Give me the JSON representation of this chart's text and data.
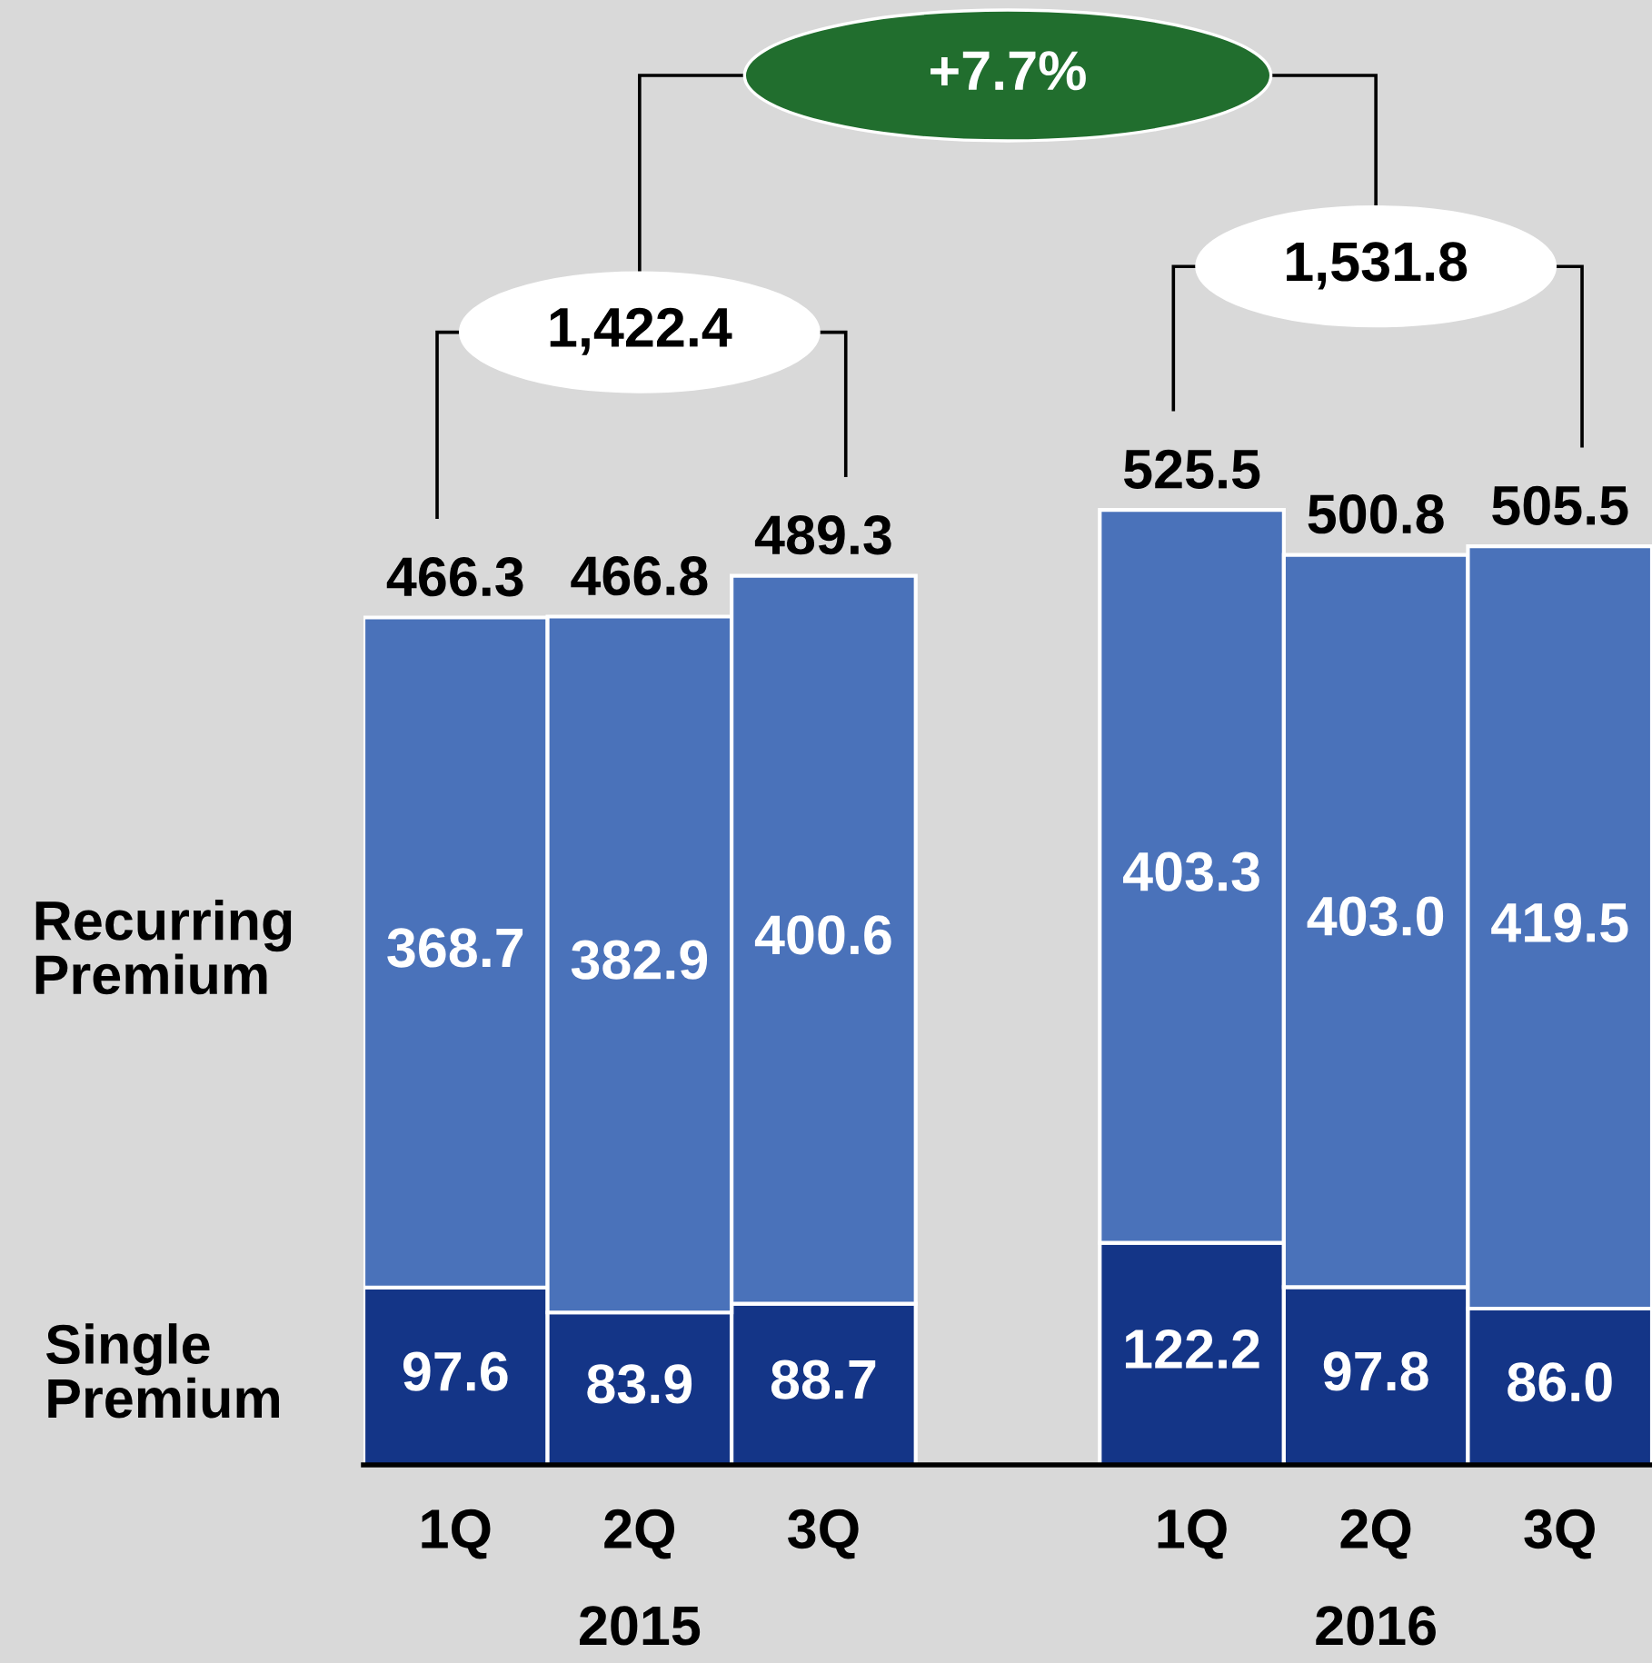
{
  "chart_data": {
    "type": "bar",
    "stacked": true,
    "tick_labels": "x",
    "categories": [
      "1Q",
      "2Q",
      "3Q",
      null,
      "1Q",
      "2Q",
      "3Q"
    ],
    "series": [
      {
        "name": "Single\nPremium",
        "color": "#143587",
        "values": [
          97.6,
          83.9,
          88.7,
          null,
          122.2,
          97.8,
          86.0
        ],
        "value_labels": [
          "97.6",
          "83.9",
          "88.7",
          null,
          "122.2",
          "97.8",
          "86.0"
        ]
      },
      {
        "name": "Recurring\nPremium",
        "color": "#4a72ba",
        "values": [
          368.7,
          382.9,
          400.6,
          null,
          403.3,
          403.0,
          419.5
        ],
        "value_labels": [
          "368.7",
          "382.9",
          "400.6",
          null,
          "403.3",
          "403.0",
          "419.5"
        ]
      }
    ],
    "totals": [
      "466.3",
      "466.8",
      "489.3",
      null,
      "525.5",
      "500.8",
      "505.5"
    ],
    "annotations": [
      "2015",
      "2016",
      "1,422.4",
      "1,531.8",
      "+7.7%"
    ]
  }
}
